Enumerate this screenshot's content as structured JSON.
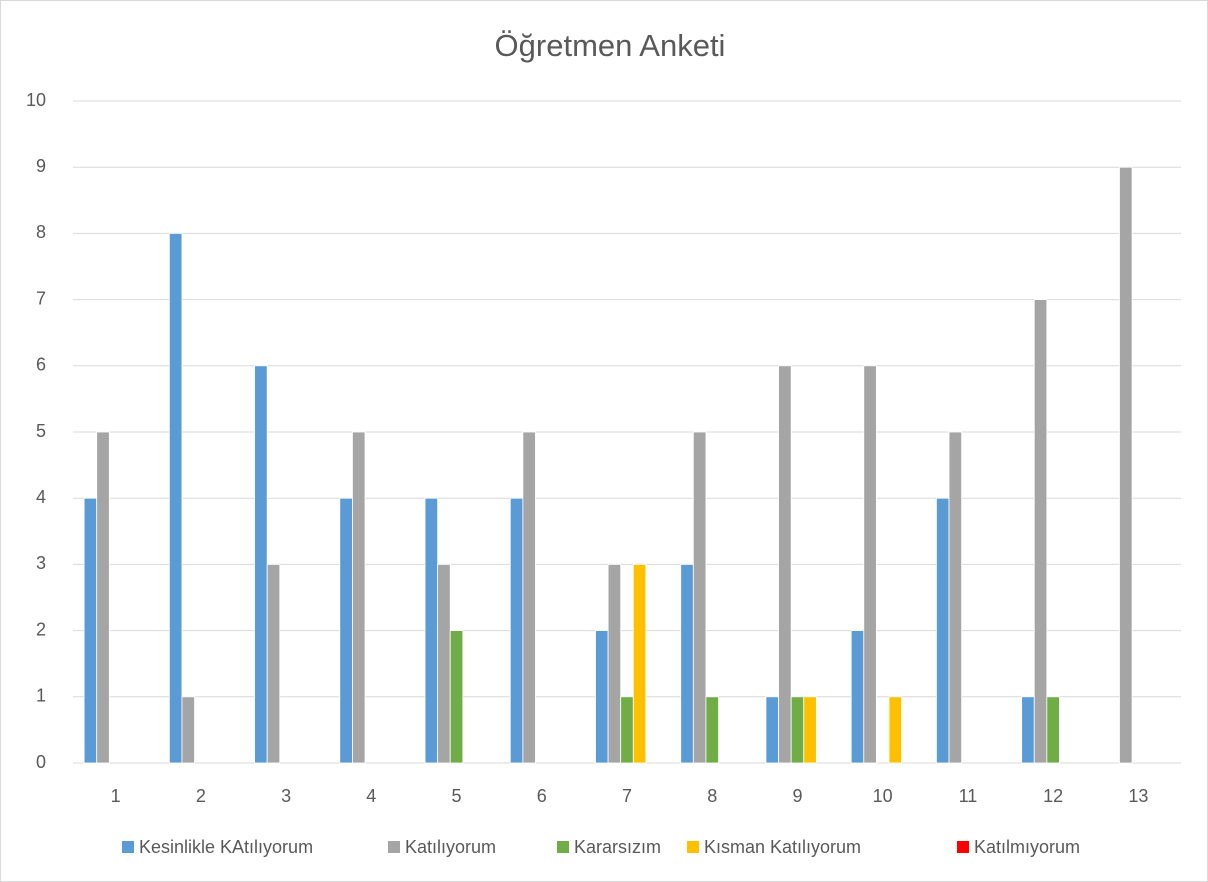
{
  "chart_data": {
    "type": "bar",
    "title": "Öğretmen Anketi",
    "categories": [
      "1",
      "2",
      "3",
      "4",
      "5",
      "6",
      "7",
      "8",
      "9",
      "10",
      "11",
      "12",
      "13"
    ],
    "series": [
      {
        "name": "Kesinlikle KAtılıyorum",
        "color": "#5b9bd5",
        "values": [
          4,
          8,
          6,
          4,
          4,
          4,
          2,
          3,
          1,
          2,
          4,
          1,
          0
        ]
      },
      {
        "name": "Katılıyorum",
        "color": "#a5a5a5",
        "values": [
          5,
          1,
          3,
          5,
          3,
          5,
          3,
          5,
          6,
          6,
          5,
          7,
          9
        ]
      },
      {
        "name": "Kararsızım",
        "color": "#70ad47",
        "values": [
          0,
          0,
          0,
          0,
          2,
          0,
          1,
          1,
          1,
          0,
          0,
          1,
          0
        ]
      },
      {
        "name": "Kısman Katılıyorum",
        "color": "#ffc000",
        "values": [
          0,
          0,
          0,
          0,
          0,
          0,
          3,
          0,
          1,
          1,
          0,
          0,
          0
        ]
      },
      {
        "name": "Katılmıyorum",
        "color": "#ff0000",
        "values": [
          0,
          0,
          0,
          0,
          0,
          0,
          0,
          0,
          0,
          0,
          0,
          0,
          0
        ]
      }
    ],
    "ylim": [
      0,
      10
    ],
    "yticks": [
      0,
      1,
      2,
      3,
      4,
      5,
      6,
      7,
      8,
      9,
      10
    ],
    "grid": true,
    "legend": "bottom"
  }
}
